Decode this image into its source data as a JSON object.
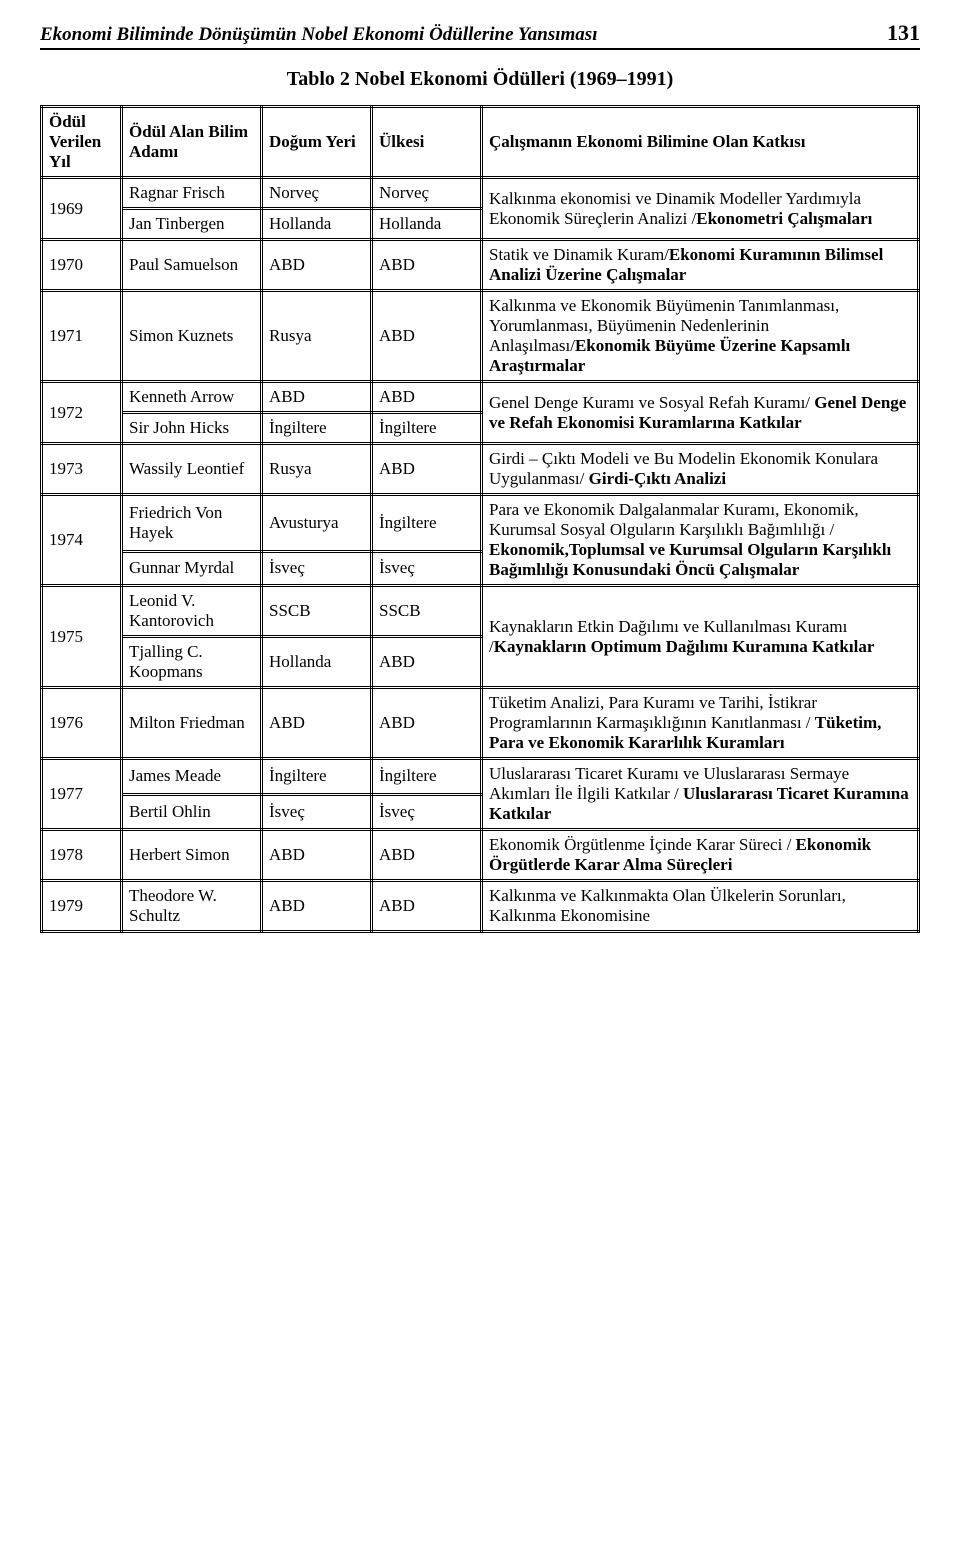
{
  "running_head": {
    "title": "Ekonomi Biliminde Dönüşümün Nobel Ekonomi Ödüllerine Yansıması",
    "page": "131"
  },
  "caption": "Tablo 2 Nobel Ekonomi Ödülleri (1969–1991)",
  "headers": {
    "year": "Ödül Verilen Yıl",
    "person": "Ödül Alan Bilim Adamı",
    "birthplace": "Doğum Yeri",
    "country": "Ülkesi",
    "contribution": "Çalışmanın Ekonomi Bilimine Olan Katkısı"
  },
  "rows": {
    "r1969": {
      "year": "1969",
      "p1": "Ragnar Frisch",
      "b1": "Norveç",
      "c1": "Norveç",
      "p2": "Jan Tinbergen",
      "b2": "Hollanda",
      "c2": "Hollanda",
      "contrib_a": "Kalkınma ekonomisi ve Dinamik Modeller Yardımıyla Ekonomik Süreçlerin Analizi /",
      "contrib_b": "Ekonometri Çalışmaları"
    },
    "r1970": {
      "year": "1970",
      "p": "Paul Samuelson",
      "b": "ABD",
      "c": "ABD",
      "contrib_a": "Statik ve Dinamik Kuram/",
      "contrib_b": "Ekonomi Kuramının Bilimsel Analizi Üzerine Çalışmalar"
    },
    "r1971": {
      "year": "1971",
      "p": "Simon Kuznets",
      "b": "Rusya",
      "c": "ABD",
      "contrib_a": "Kalkınma ve Ekonomik Büyümenin Tanımlanması, Yorumlanması, Büyümenin Nedenlerinin Anlaşılması/",
      "contrib_b": "Ekonomik Büyüme Üzerine Kapsamlı Araştırmalar"
    },
    "r1972": {
      "year": "1972",
      "p1": "Kenneth Arrow",
      "b1": "ABD",
      "c1": "ABD",
      "p2": "Sir John Hicks",
      "b2": "İngiltere",
      "c2": "İngiltere",
      "contrib_a": "Genel Denge Kuramı ve Sosyal Refah Kuramı/ ",
      "contrib_b": "Genel Denge ve Refah Ekonomisi Kuramlarına Katkılar"
    },
    "r1973": {
      "year": "1973",
      "p": "Wassily Leontief",
      "b": "Rusya",
      "c": "ABD",
      "contrib_a": "Girdi – Çıktı Modeli ve Bu Modelin Ekonomik Konulara Uygulanması/ ",
      "contrib_b": "Girdi-Çıktı Analizi"
    },
    "r1974": {
      "year": "1974",
      "p1": "Friedrich Von Hayek",
      "b1": "Avusturya",
      "c1": "İngiltere",
      "p2": "Gunnar Myrdal",
      "b2": "İsveç",
      "c2": "İsveç",
      "contrib_a": "Para ve Ekonomik Dalgalanmalar Kuramı, Ekonomik, Kurumsal Sosyal Olguların Karşılıklı Bağımlılığı / ",
      "contrib_b": "Ekonomik,Toplumsal ve Kurumsal Olguların Karşılıklı Bağımlılığı Konusundaki Öncü Çalışmalar"
    },
    "r1975": {
      "year": "1975",
      "p1": "Leonid V. Kantorovich",
      "b1": "SSCB",
      "c1": "SSCB",
      "p2": "Tjalling C. Koopmans",
      "b2": "Hollanda",
      "c2": "ABD",
      "contrib_a": "Kaynakların Etkin Dağılımı ve Kullanılması Kuramı /",
      "contrib_b": "Kaynakların Optimum Dağılımı Kuramına Katkılar"
    },
    "r1976": {
      "year": "1976",
      "p": "Milton Friedman",
      "b": "ABD",
      "c": "ABD",
      "contrib_a": "Tüketim Analizi, Para Kuramı ve Tarihi, İstikrar Programlarının Karmaşıklığının Kanıtlanması / ",
      "contrib_b": "Tüketim, Para ve Ekonomik Kararlılık Kuramları"
    },
    "r1977": {
      "year": "1977",
      "p1": "James Meade",
      "b1": "İngiltere",
      "c1": "İngiltere",
      "p2": "Bertil Ohlin",
      "b2": "İsveç",
      "c2": "İsveç",
      "contrib_a": "Uluslararası Ticaret Kuramı ve Uluslararası Sermaye Akımları İle İlgili Katkılar / ",
      "contrib_b": "Uluslararası Ticaret Kuramına Katkılar"
    },
    "r1978": {
      "year": "1978",
      "p": "Herbert Simon",
      "b": "ABD",
      "c": "ABD",
      "contrib_a": "Ekonomik Örgütlenme İçinde Karar Süreci / ",
      "contrib_b": "Ekonomik Örgütlerde Karar Alma Süreçleri"
    },
    "r1979": {
      "year": "1979",
      "p": "Theodore W. Schultz",
      "b": "ABD",
      "c": "ABD",
      "contrib_a": "Kalkınma ve Kalkınmakta Olan Ülkelerin Sorunları, Kalkınma Ekonomisine"
    }
  }
}
